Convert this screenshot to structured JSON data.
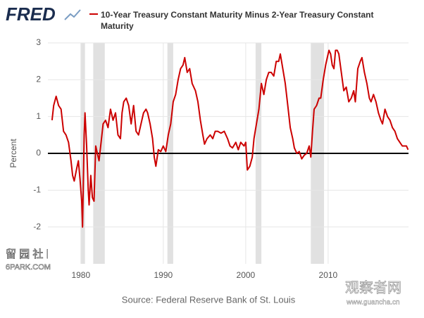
{
  "brand": "FRED",
  "chart_data": {
    "type": "line",
    "title": "10-Year Treasury Constant Maturity Minus 2-Year Treasury Constant Maturity",
    "y_label": "Percent",
    "source": "Source: Federal Reserve Bank of St. Louis",
    "xlim": [
      1976,
      2019.75
    ],
    "xticks": [
      1980,
      1990,
      2000,
      2010
    ],
    "ylim": [
      -3,
      3
    ],
    "yticks": [
      -2,
      -1,
      0,
      1,
      2,
      3
    ],
    "grid": true,
    "recessions": [
      [
        1980.0,
        1980.5
      ],
      [
        1981.5,
        1982.9
      ],
      [
        1990.5,
        1991.2
      ],
      [
        2001.2,
        2001.9
      ],
      [
        2007.9,
        2009.5
      ]
    ],
    "series": [
      {
        "name": "10-Year Treasury Constant Maturity Minus 2-Year Treasury Constant Maturity",
        "color": "#cc0000",
        "x": [
          1976.5,
          1976.7,
          1977.0,
          1977.3,
          1977.6,
          1977.9,
          1978.2,
          1978.5,
          1978.8,
          1979.0,
          1979.2,
          1979.5,
          1979.7,
          1979.9,
          1980.1,
          1980.2,
          1980.4,
          1980.5,
          1980.7,
          1980.9,
          1981.0,
          1981.2,
          1981.4,
          1981.6,
          1981.8,
          1982.0,
          1982.2,
          1982.5,
          1982.7,
          1983.0,
          1983.3,
          1983.6,
          1983.9,
          1984.2,
          1984.5,
          1984.8,
          1985.0,
          1985.2,
          1985.5,
          1985.8,
          1986.1,
          1986.4,
          1986.7,
          1987.0,
          1987.3,
          1987.6,
          1987.9,
          1988.1,
          1988.4,
          1988.7,
          1988.9,
          1989.1,
          1989.4,
          1989.7,
          1990.0,
          1990.3,
          1990.6,
          1990.9,
          1991.2,
          1991.5,
          1991.8,
          1992.1,
          1992.4,
          1992.6,
          1992.9,
          1993.2,
          1993.5,
          1993.9,
          1994.2,
          1994.5,
          1994.8,
          1995.0,
          1995.3,
          1995.7,
          1996.0,
          1996.3,
          1996.6,
          1997.0,
          1997.4,
          1997.8,
          1998.1,
          1998.4,
          1998.8,
          1999.1,
          1999.4,
          1999.8,
          2000.0,
          2000.2,
          2000.5,
          2000.8,
          2001.0,
          2001.3,
          2001.6,
          2001.9,
          2002.2,
          2002.5,
          2002.8,
          2003.1,
          2003.4,
          2003.7,
          2004.0,
          2004.2,
          2004.5,
          2004.8,
          2005.1,
          2005.4,
          2005.7,
          2005.9,
          2006.2,
          2006.5,
          2006.8,
          2007.1,
          2007.4,
          2007.7,
          2007.9,
          2008.1,
          2008.3,
          2008.6,
          2008.9,
          2009.1,
          2009.4,
          2009.7,
          2009.9,
          2010.1,
          2010.3,
          2010.5,
          2010.7,
          2010.9,
          2011.1,
          2011.3,
          2011.6,
          2011.9,
          2012.2,
          2012.5,
          2012.8,
          2013.1,
          2013.3,
          2013.6,
          2013.9,
          2014.1,
          2014.4,
          2014.7,
          2015.0,
          2015.2,
          2015.5,
          2015.8,
          2016.1,
          2016.4,
          2016.6,
          2016.9,
          2017.2,
          2017.5,
          2017.8,
          2018.1,
          2018.4,
          2018.7,
          2019.0,
          2019.3,
          2019.5,
          2019.7
        ],
        "values": [
          0.9,
          1.3,
          1.55,
          1.3,
          1.2,
          0.6,
          0.5,
          0.3,
          -0.2,
          -0.6,
          -0.75,
          -0.4,
          -0.2,
          -0.7,
          -1.3,
          -2.0,
          0.5,
          1.1,
          0.2,
          -1.0,
          -1.4,
          -0.6,
          -1.2,
          -1.3,
          0.2,
          0.0,
          -0.2,
          0.4,
          0.8,
          0.9,
          0.7,
          1.2,
          0.9,
          1.1,
          0.5,
          0.4,
          1.1,
          1.4,
          1.5,
          1.3,
          0.8,
          1.3,
          0.6,
          0.5,
          0.8,
          1.1,
          1.2,
          1.1,
          0.8,
          0.4,
          -0.1,
          -0.35,
          0.1,
          0.05,
          0.2,
          0.05,
          0.5,
          0.8,
          1.4,
          1.6,
          2.0,
          2.3,
          2.4,
          2.6,
          2.2,
          2.3,
          1.9,
          1.7,
          1.4,
          0.9,
          0.5,
          0.25,
          0.4,
          0.5,
          0.4,
          0.6,
          0.6,
          0.55,
          0.6,
          0.4,
          0.2,
          0.15,
          0.3,
          0.1,
          0.3,
          0.2,
          0.3,
          -0.45,
          -0.35,
          -0.1,
          0.4,
          0.8,
          1.2,
          1.9,
          1.6,
          2.0,
          2.2,
          2.2,
          2.1,
          2.5,
          2.5,
          2.7,
          2.3,
          1.9,
          1.3,
          0.7,
          0.4,
          0.15,
          0.0,
          0.05,
          -0.15,
          -0.05,
          0.0,
          0.2,
          -0.1,
          0.6,
          1.2,
          1.3,
          1.5,
          1.5,
          2.0,
          2.4,
          2.6,
          2.8,
          2.7,
          2.4,
          2.3,
          2.8,
          2.8,
          2.7,
          2.2,
          1.7,
          1.8,
          1.4,
          1.5,
          1.7,
          1.4,
          2.3,
          2.5,
          2.6,
          2.2,
          1.9,
          1.5,
          1.4,
          1.6,
          1.4,
          1.1,
          0.9,
          0.8,
          1.2,
          1.0,
          0.9,
          0.7,
          0.6,
          0.4,
          0.3,
          0.2,
          0.2,
          0.2,
          0.1
        ]
      }
    ]
  },
  "watermarks": {
    "left": "留 园 社 区",
    "left_url": "6PARK.COM",
    "right": "观察者网",
    "right_url": "www.guancha.cn"
  }
}
